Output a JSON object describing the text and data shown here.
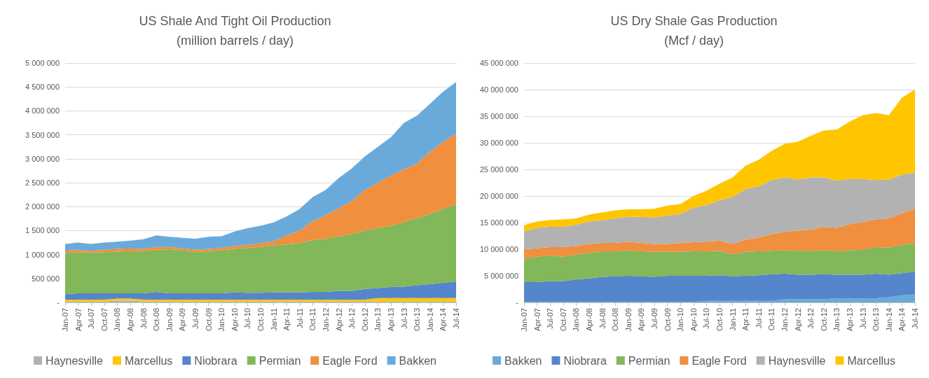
{
  "chart_data": [
    {
      "type": "area",
      "stacked": true,
      "title": "US Shale And Tight Oil Production",
      "subtitle": "(million barrels / day)",
      "categories": [
        "Jan-07",
        "Apr-07",
        "Jul-07",
        "Oct-07",
        "Jan-08",
        "Apr-08",
        "Jul-08",
        "Oct-08",
        "Jan-09",
        "Apr-09",
        "Jul-09",
        "Oct-09",
        "Jan-10",
        "Apr-10",
        "Jul-10",
        "Oct-10",
        "Jan-11",
        "Apr-11",
        "Jul-11",
        "Oct-11",
        "Jan-12",
        "Apr-12",
        "Jul-12",
        "Oct-12",
        "Jan-13",
        "Apr-13",
        "Jul-13",
        "Oct-13",
        "Jan-14",
        "Apr-14",
        "Jul-14"
      ],
      "series": [
        {
          "name": "Haynesville",
          "color": "#b2b2b2",
          "values": [
            20000,
            20000,
            20000,
            20000,
            40000,
            40000,
            20000,
            20000,
            20000,
            20000,
            20000,
            20000,
            20000,
            20000,
            20000,
            20000,
            20000,
            20000,
            20000,
            20000,
            20000,
            20000,
            20000,
            20000,
            20000,
            20000,
            20000,
            20000,
            20000,
            20000,
            20000
          ]
        },
        {
          "name": "Marcellus",
          "color": "#ffc600",
          "values": [
            40000,
            40000,
            40000,
            40000,
            40000,
            40000,
            40000,
            40000,
            40000,
            40000,
            40000,
            40000,
            40000,
            40000,
            40000,
            40000,
            40000,
            40000,
            40000,
            40000,
            40000,
            40000,
            40000,
            40000,
            70000,
            70000,
            70000,
            70000,
            70000,
            70000,
            70000
          ]
        },
        {
          "name": "Niobrara",
          "color": "#5585cb",
          "values": [
            110000,
            130000,
            130000,
            130000,
            110000,
            110000,
            130000,
            160000,
            130000,
            130000,
            130000,
            130000,
            130000,
            150000,
            140000,
            140000,
            150000,
            150000,
            150000,
            160000,
            160000,
            180000,
            180000,
            220000,
            210000,
            230000,
            240000,
            270000,
            290000,
            320000,
            350000
          ]
        },
        {
          "name": "Permian",
          "color": "#82b75a",
          "values": [
            860000,
            860000,
            850000,
            860000,
            870000,
            880000,
            880000,
            880000,
            920000,
            900000,
            860000,
            880000,
            900000,
            910000,
            940000,
            960000,
            980000,
            1000000,
            1030000,
            1080000,
            1110000,
            1140000,
            1190000,
            1220000,
            1250000,
            1280000,
            1350000,
            1400000,
            1470000,
            1540000,
            1610000
          ]
        },
        {
          "name": "Eagle Ford",
          "color": "#f08f3e",
          "values": [
            50000,
            50000,
            40000,
            50000,
            60000,
            60000,
            50000,
            60000,
            50000,
            40000,
            50000,
            50000,
            50000,
            60000,
            60000,
            80000,
            90000,
            190000,
            260000,
            400000,
            490000,
            590000,
            690000,
            850000,
            950000,
            1050000,
            1100000,
            1140000,
            1300000,
            1400000,
            1470000
          ]
        },
        {
          "name": "Bakken",
          "color": "#6aaadb",
          "values": [
            140000,
            150000,
            140000,
            150000,
            150000,
            160000,
            200000,
            240000,
            210000,
            220000,
            230000,
            250000,
            240000,
            300000,
            350000,
            360000,
            390000,
            400000,
            450000,
            500000,
            530000,
            630000,
            680000,
            700000,
            750000,
            800000,
            970000,
            1000000,
            1000000,
            1050000,
            1080000
          ]
        }
      ],
      "ylim": [
        0,
        5000000
      ],
      "yticks": [
        {
          "value": 0,
          "label": "-"
        },
        {
          "value": 500000,
          "label": "500 000"
        },
        {
          "value": 1000000,
          "label": "1 000 000"
        },
        {
          "value": 1500000,
          "label": "1 500 000"
        },
        {
          "value": 2000000,
          "label": "2 000 000"
        },
        {
          "value": 2500000,
          "label": "2 500 000"
        },
        {
          "value": 3000000,
          "label": "3 000 000"
        },
        {
          "value": 3500000,
          "label": "3 500 000"
        },
        {
          "value": 4000000,
          "label": "4 000 000"
        },
        {
          "value": 4500000,
          "label": "4 500 000"
        },
        {
          "value": 5000000,
          "label": "5 000 000"
        }
      ],
      "grid": "y",
      "legend": "bottom"
    },
    {
      "type": "area",
      "stacked": true,
      "title": "US Dry Shale Gas Production",
      "subtitle": "(Mcf / day)",
      "categories": [
        "Jan-07",
        "Apr-07",
        "Jul-07",
        "Oct-07",
        "Jan-08",
        "Apr-08",
        "Jul-08",
        "Oct-08",
        "Jan-09",
        "Apr-09",
        "Jul-09",
        "Oct-09",
        "Jan-10",
        "Apr-10",
        "Jul-10",
        "Oct-10",
        "Jan-11",
        "Apr-11",
        "Jul-11",
        "Oct-11",
        "Jan-12",
        "Apr-12",
        "Jul-12",
        "Oct-12",
        "Jan-13",
        "Apr-13",
        "Jul-13",
        "Oct-13",
        "Jan-14",
        "Apr-14",
        "Jul-14"
      ],
      "series": [
        {
          "name": "Bakken",
          "color": "#6aaadb",
          "values": [
            100000,
            100000,
            100000,
            100000,
            100000,
            100000,
            100000,
            100000,
            100000,
            100000,
            100000,
            100000,
            100000,
            100000,
            300000,
            300000,
            300000,
            300000,
            300000,
            300000,
            600000,
            600000,
            600000,
            600000,
            800000,
            800000,
            800000,
            800000,
            1000000,
            1300000,
            1500000
          ]
        },
        {
          "name": "Niobrara",
          "color": "#5585cb",
          "values": [
            3700000,
            3700000,
            3900000,
            3900000,
            4200000,
            4400000,
            4700000,
            4800000,
            4900000,
            4800000,
            4700000,
            4900000,
            4900000,
            4900000,
            4700000,
            4800000,
            4600000,
            4700000,
            4800000,
            5000000,
            4800000,
            4600000,
            4600000,
            4700000,
            4400000,
            4400000,
            4400000,
            4600000,
            4200000,
            4200000,
            4300000
          ]
        },
        {
          "name": "Permian",
          "color": "#82b75a",
          "values": [
            4400000,
            4800000,
            4800000,
            4600000,
            4700000,
            4800000,
            4800000,
            4700000,
            4800000,
            4700000,
            4700000,
            4500000,
            4500000,
            4600000,
            4600000,
            4600000,
            4100000,
            4500000,
            4500000,
            4400000,
            4400000,
            4500000,
            4500000,
            4500000,
            4400000,
            4600000,
            4700000,
            5000000,
            5100000,
            5300000,
            5400000
          ]
        },
        {
          "name": "Eagle Ford",
          "color": "#f08f3e",
          "values": [
            1800000,
            1600000,
            1600000,
            1800000,
            1600000,
            1700000,
            1600000,
            1600000,
            1600000,
            1600000,
            1500000,
            1500000,
            1700000,
            1700000,
            1800000,
            1900000,
            2000000,
            2300000,
            2600000,
            3100000,
            3500000,
            3800000,
            4000000,
            4400000,
            4400000,
            4900000,
            5200000,
            5200000,
            5500000,
            6000000,
            6400000
          ]
        },
        {
          "name": "Haynesville",
          "color": "#b2b2b2",
          "values": [
            3400000,
            3800000,
            3800000,
            3800000,
            4000000,
            4200000,
            4300000,
            4600000,
            4700000,
            4900000,
            5000000,
            5300000,
            5400000,
            6500000,
            6900000,
            7600000,
            8800000,
            9500000,
            9600000,
            10200000,
            10200000,
            9600000,
            9800000,
            9300000,
            8900000,
            8500000,
            8100000,
            7400000,
            7300000,
            7200000,
            6800000
          ]
        },
        {
          "name": "Marcellus",
          "color": "#ffc600",
          "values": [
            1100000,
            1200000,
            1300000,
            1400000,
            1200000,
            1300000,
            1400000,
            1500000,
            1400000,
            1400000,
            1600000,
            1900000,
            1900000,
            2200000,
            2700000,
            3100000,
            3700000,
            4400000,
            5000000,
            5500000,
            6300000,
            7100000,
            7800000,
            8800000,
            9600000,
            10800000,
            12000000,
            12600000,
            12100000,
            14500000,
            15600000
          ]
        }
      ],
      "ylim": [
        0,
        45000000
      ],
      "yticks": [
        {
          "value": 0,
          "label": "-"
        },
        {
          "value": 5000000,
          "label": "5 000 000"
        },
        {
          "value": 10000000,
          "label": "10 000 000"
        },
        {
          "value": 15000000,
          "label": "15 000 000"
        },
        {
          "value": 20000000,
          "label": "20 000 000"
        },
        {
          "value": 25000000,
          "label": "25 000 000"
        },
        {
          "value": 30000000,
          "label": "30 000 000"
        },
        {
          "value": 35000000,
          "label": "35 000 000"
        },
        {
          "value": 40000000,
          "label": "40 000 000"
        },
        {
          "value": 45000000,
          "label": "45 000 000"
        }
      ],
      "grid": "y",
      "legend": "bottom"
    }
  ]
}
